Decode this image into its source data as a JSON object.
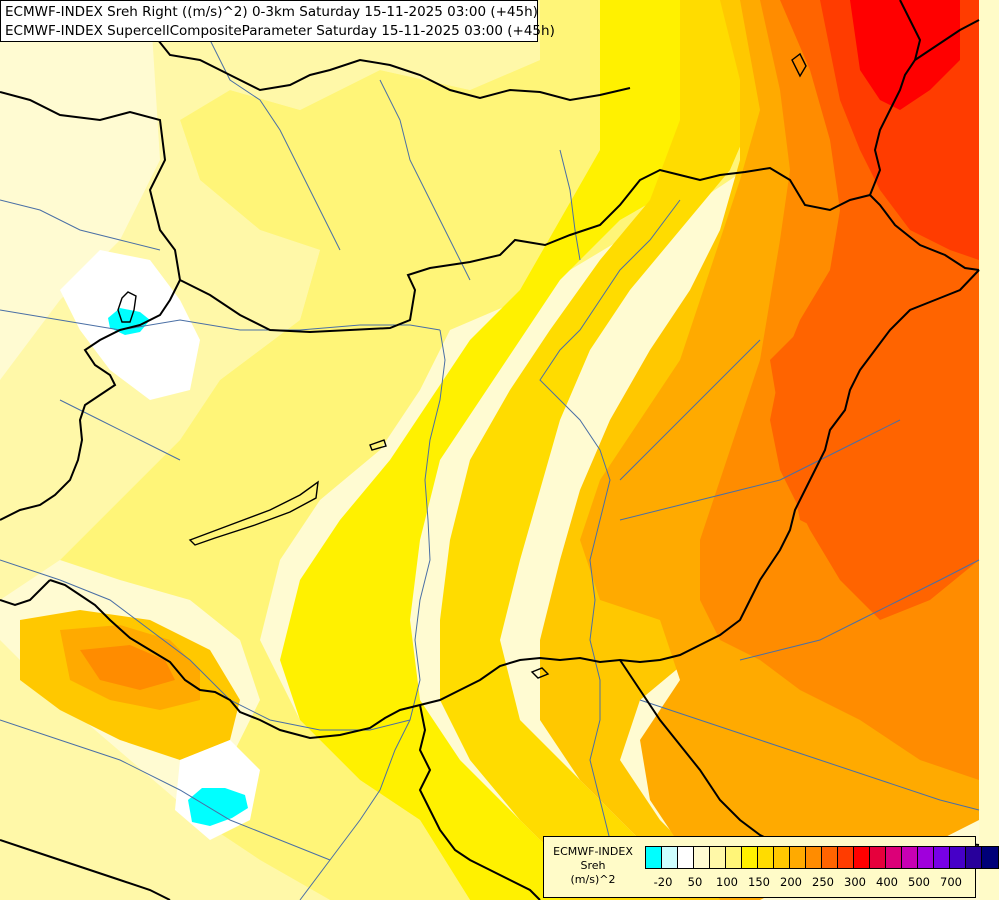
{
  "header": {
    "line1": "ECMWF-INDEX Sreh Right ((m/s)^2) 0-3km Saturday 15-11-2025 03:00 (+45h)",
    "line2": "ECMWF-INDEX SupercellCompositeParameter Saturday 15-11-2025 03:00 (+45h)"
  },
  "legend": {
    "source": "ECMWF-INDEX",
    "variable": "Sreh",
    "unit": "(m/s)^2",
    "colors": [
      "#00ffff",
      "#cdfefe",
      "#ffffff",
      "#fffbd2",
      "#fff8a8",
      "#fff578",
      "#fff100",
      "#ffdc00",
      "#ffc800",
      "#ffaa00",
      "#ff8c00",
      "#ff6400",
      "#ff3c00",
      "#ff0000",
      "#e6003c",
      "#dc0078",
      "#c800b4",
      "#a000dc",
      "#7800e6",
      "#4600c8",
      "#28009b",
      "#000078"
    ],
    "tick_labels": [
      "-20",
      "50",
      "100",
      "150",
      "200",
      "250",
      "300",
      "400",
      "500",
      "700"
    ]
  },
  "map_colors": {
    "pale_white": "#ffffff",
    "pale_yellow": "#fffbd2",
    "light_yellow": "#fff8a8",
    "mid_yellow": "#fff578",
    "yellow": "#fff100",
    "gold": "#ffdc00",
    "amber": "#ffc800",
    "orange": "#ffaa00",
    "dark_orange": "#ff8c00",
    "red_orange": "#ff6400",
    "orange_red": "#ff3c00",
    "red": "#ff0000",
    "cyan": "#00ffff",
    "border": "#000000",
    "river": "#4a6fa5"
  }
}
